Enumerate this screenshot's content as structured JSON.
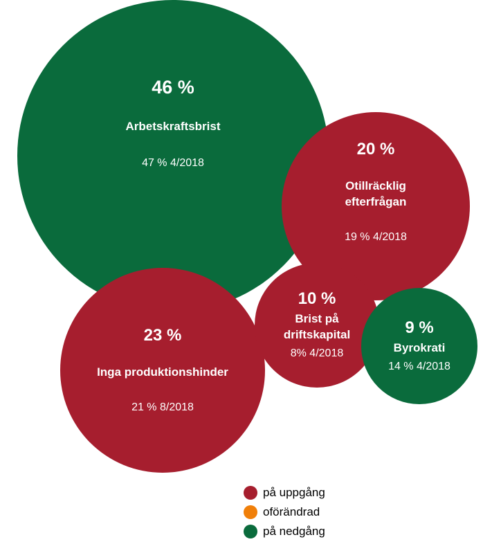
{
  "chart_data": {
    "type": "bubble",
    "categories": [
      "Arbetskraftsbrist",
      "Otillräcklig efterfrågan",
      "Inga produktionshinder",
      "Brist på driftskapital",
      "Byrokrati"
    ],
    "values": [
      46,
      20,
      23,
      10,
      9
    ],
    "value_labels": [
      "46 %",
      "20 %",
      "23 %",
      "10 %",
      "9 %"
    ],
    "notes": [
      "47 % 4/2018",
      "19 % 4/2018",
      "21 % 8/2018",
      "8% 4/2018",
      "14 % 4/2018"
    ],
    "colors": [
      "#0a6b3c",
      "#a61e2e",
      "#a61e2e",
      "#a61e2e",
      "#0a6b3c"
    ],
    "legend": [
      {
        "name": "på uppgång",
        "color": "#a61e2e"
      },
      {
        "name": "oförändrad",
        "color": "#f07f09"
      },
      {
        "name": "på nedgång",
        "color": "#0a6b3c"
      }
    ]
  }
}
